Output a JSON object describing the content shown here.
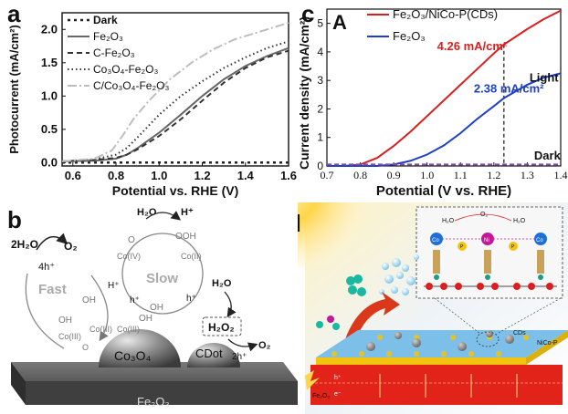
{
  "panels": {
    "a": {
      "label": "a",
      "chart_data": {
        "type": "line",
        "xlabel": "Potential vs. RHE (V)",
        "ylabel": "Photocurrent (mA/cm²)",
        "xlim": [
          0.55,
          1.6
        ],
        "ylim": [
          -0.05,
          2.25
        ],
        "x_ticks": [
          "0.6",
          "0.8",
          "1.0",
          "1.2",
          "1.4",
          "1.6"
        ],
        "y_ticks": [
          "0.0",
          "0.5",
          "1.0",
          "1.5",
          "2.0"
        ],
        "legend_position": "top-left",
        "series": [
          {
            "name": "Dark",
            "style": "dark",
            "color": "#222222",
            "points": [
              [
                0.55,
                0.0
              ],
              [
                0.8,
                0.0
              ],
              [
                1.0,
                0.0
              ],
              [
                1.2,
                0.0
              ],
              [
                1.4,
                0.0
              ],
              [
                1.6,
                0.0
              ]
            ]
          },
          {
            "name": "Fe₂O₃",
            "style": "solid",
            "color": "#666666",
            "points": [
              [
                0.55,
                0.02
              ],
              [
                0.7,
                0.03
              ],
              [
                0.8,
                0.06
              ],
              [
                0.85,
                0.12
              ],
              [
                0.9,
                0.22
              ],
              [
                1.0,
                0.45
              ],
              [
                1.1,
                0.72
              ],
              [
                1.2,
                1.0
              ],
              [
                1.3,
                1.25
              ],
              [
                1.4,
                1.45
              ],
              [
                1.5,
                1.6
              ],
              [
                1.6,
                1.72
              ]
            ]
          },
          {
            "name": "C-Fe₂O₃",
            "style": "dash",
            "color": "#333333",
            "points": [
              [
                0.55,
                0.02
              ],
              [
                0.7,
                0.04
              ],
              [
                0.8,
                0.07
              ],
              [
                0.85,
                0.12
              ],
              [
                0.9,
                0.2
              ],
              [
                1.0,
                0.4
              ],
              [
                1.1,
                0.65
              ],
              [
                1.2,
                0.93
              ],
              [
                1.3,
                1.2
              ],
              [
                1.4,
                1.42
              ],
              [
                1.5,
                1.58
              ],
              [
                1.6,
                1.68
              ]
            ]
          },
          {
            "name": "Co₃O₄-Fe₂O₃",
            "style": "dot",
            "color": "#333333",
            "points": [
              [
                0.55,
                0.02
              ],
              [
                0.7,
                0.05
              ],
              [
                0.8,
                0.12
              ],
              [
                0.85,
                0.22
              ],
              [
                0.9,
                0.38
              ],
              [
                1.0,
                0.72
              ],
              [
                1.1,
                1.0
              ],
              [
                1.2,
                1.22
              ],
              [
                1.3,
                1.42
              ],
              [
                1.4,
                1.58
              ],
              [
                1.5,
                1.72
              ],
              [
                1.6,
                1.82
              ]
            ]
          },
          {
            "name": "C/Co₃O₄-Fe₂O₃",
            "style": "dashdot",
            "color": "#bdbdbd",
            "points": [
              [
                0.55,
                0.02
              ],
              [
                0.7,
                0.06
              ],
              [
                0.78,
                0.18
              ],
              [
                0.83,
                0.4
              ],
              [
                0.88,
                0.65
              ],
              [
                0.95,
                0.92
              ],
              [
                1.05,
                1.25
              ],
              [
                1.15,
                1.5
              ],
              [
                1.25,
                1.7
              ],
              [
                1.35,
                1.85
              ],
              [
                1.5,
                2.0
              ],
              [
                1.6,
                2.1
              ]
            ]
          }
        ]
      }
    },
    "b": {
      "label": "b",
      "texts": {
        "water_left": "2H₂O",
        "o2_left": "O₂",
        "h_plus_4": "4h⁺",
        "fast": "Fast",
        "slow": "Slow",
        "h2o_top": "H₂O",
        "h_plus_top": "H⁺",
        "co_iv": "Co(IV)",
        "co_ii": "Co(II)",
        "ooh": "OOH",
        "o_dbl": "O",
        "h_plus_left": "H⁺",
        "h_left": "h⁺",
        "h_right": "h⁺",
        "h2o_right": "H₂O",
        "oh_1": "OH",
        "oh_2": "OH",
        "oh_3": "OH",
        "oh_4": "OH",
        "co_iii_1": "Co(III)",
        "co_iii_2": "Co(III)",
        "co_iii_3": "Co(III)",
        "o_bridge": "O",
        "h2o2": "H₂O₂",
        "h_plus_2": "2h⁺",
        "o2_right": "O₂",
        "co3o4": "Co₃O₄",
        "cdot": "CDot",
        "fe2o3": "Fe₂O₃"
      }
    },
    "c": {
      "label": "c",
      "inner_label": "A",
      "chart_data": {
        "type": "line",
        "xlabel": "Potential (V vs. RHE)",
        "ylabel": "Current density (mA/cm²)",
        "xlim": [
          0.7,
          1.4
        ],
        "ylim": [
          0,
          5.5
        ],
        "x_ticks": [
          "0.7",
          "0.8",
          "0.9",
          "1.0",
          "1.1",
          "1.2",
          "1.3",
          "1.4"
        ],
        "y_ticks": [
          "0",
          "1",
          "2",
          "3",
          "4",
          "5"
        ],
        "legend_position": "top-left",
        "vline_x": 1.23,
        "series": [
          {
            "name": "Fe₂O₃/NiCo-P(CDs)",
            "color": "#d91f1f",
            "points": [
              [
                0.7,
                0.0
              ],
              [
                0.75,
                0.0
              ],
              [
                0.8,
                0.05
              ],
              [
                0.85,
                0.28
              ],
              [
                0.9,
                0.7
              ],
              [
                0.95,
                1.2
              ],
              [
                1.0,
                1.75
              ],
              [
                1.05,
                2.3
              ],
              [
                1.1,
                2.85
              ],
              [
                1.15,
                3.4
              ],
              [
                1.2,
                3.95
              ],
              [
                1.23,
                4.26
              ],
              [
                1.3,
                4.8
              ],
              [
                1.35,
                5.15
              ],
              [
                1.4,
                5.45
              ]
            ]
          },
          {
            "name": "Fe₂O₃",
            "color": "#1f3fc8",
            "points": [
              [
                0.7,
                0.0
              ],
              [
                0.85,
                0.0
              ],
              [
                0.9,
                0.05
              ],
              [
                0.95,
                0.18
              ],
              [
                1.0,
                0.4
              ],
              [
                1.05,
                0.72
              ],
              [
                1.1,
                1.15
              ],
              [
                1.15,
                1.65
              ],
              [
                1.2,
                2.1
              ],
              [
                1.23,
                2.38
              ],
              [
                1.3,
                2.85
              ],
              [
                1.35,
                3.1
              ],
              [
                1.4,
                3.25
              ]
            ]
          },
          {
            "name": "Dark",
            "color": "#7a4ea3",
            "dashed": true,
            "points": [
              [
                0.7,
                0.05
              ],
              [
                1.4,
                0.05
              ]
            ]
          }
        ],
        "annotations": {
          "red_value": "4.26 mA/cm²",
          "blue_value": "2.38 mA/cm²",
          "light": "Light",
          "dark": "Dark"
        }
      }
    },
    "d": {
      "label": "d",
      "texts": {
        "o2": "O₂",
        "h2o_1": "H₂O",
        "h2o_2": "H₂O",
        "ni": "Ni",
        "co_1": "Co",
        "co_2": "Co",
        "p_1": "P",
        "p_2": "P",
        "cds": "CDs",
        "nico_p": "NiCo-P",
        "fe2o3": "Fe₂O₃",
        "h_plus": "h⁺",
        "e_minus": "e⁻"
      }
    }
  },
  "colors": {
    "red_curve": "#d91f1f",
    "blue_curve": "#1f3fc8",
    "dark_curve": "#7a4ea3",
    "substrate_red": "#e2231a",
    "nickel_magenta": "#c2189a",
    "cobalt_blue": "#1e6fd9",
    "phosphorus_yellow": "#f2c40f",
    "water_teal": "#19b8a0"
  }
}
